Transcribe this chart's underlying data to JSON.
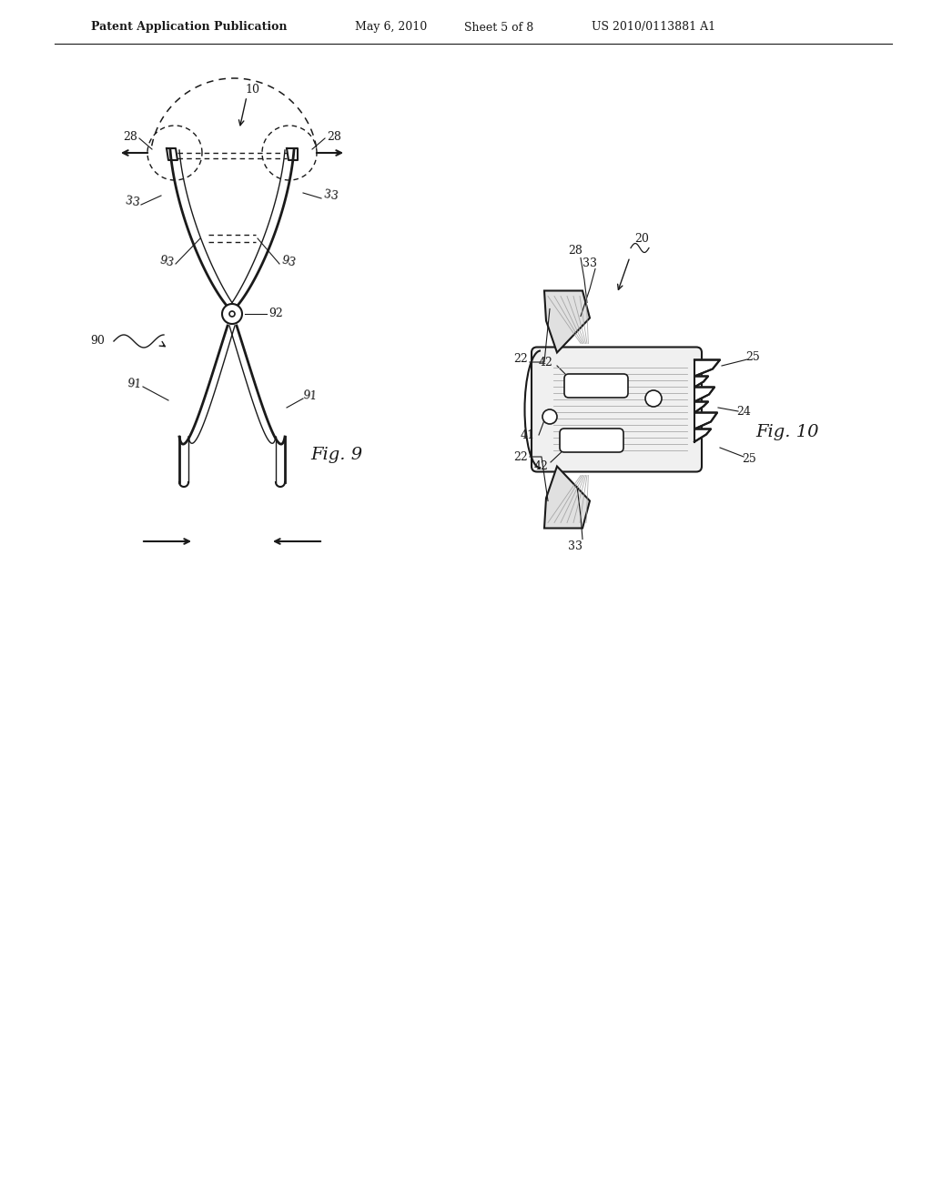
{
  "bg_color": "#ffffff",
  "header_text": "Patent Application Publication",
  "header_date": "May 6, 2010",
  "header_sheet": "Sheet 5 of 8",
  "header_patent": "US 2010/0113881 A1",
  "fig9_label": "Fig. 9",
  "fig10_label": "Fig. 10",
  "line_color": "#1a1a1a",
  "label_color": "#1a1a1a"
}
